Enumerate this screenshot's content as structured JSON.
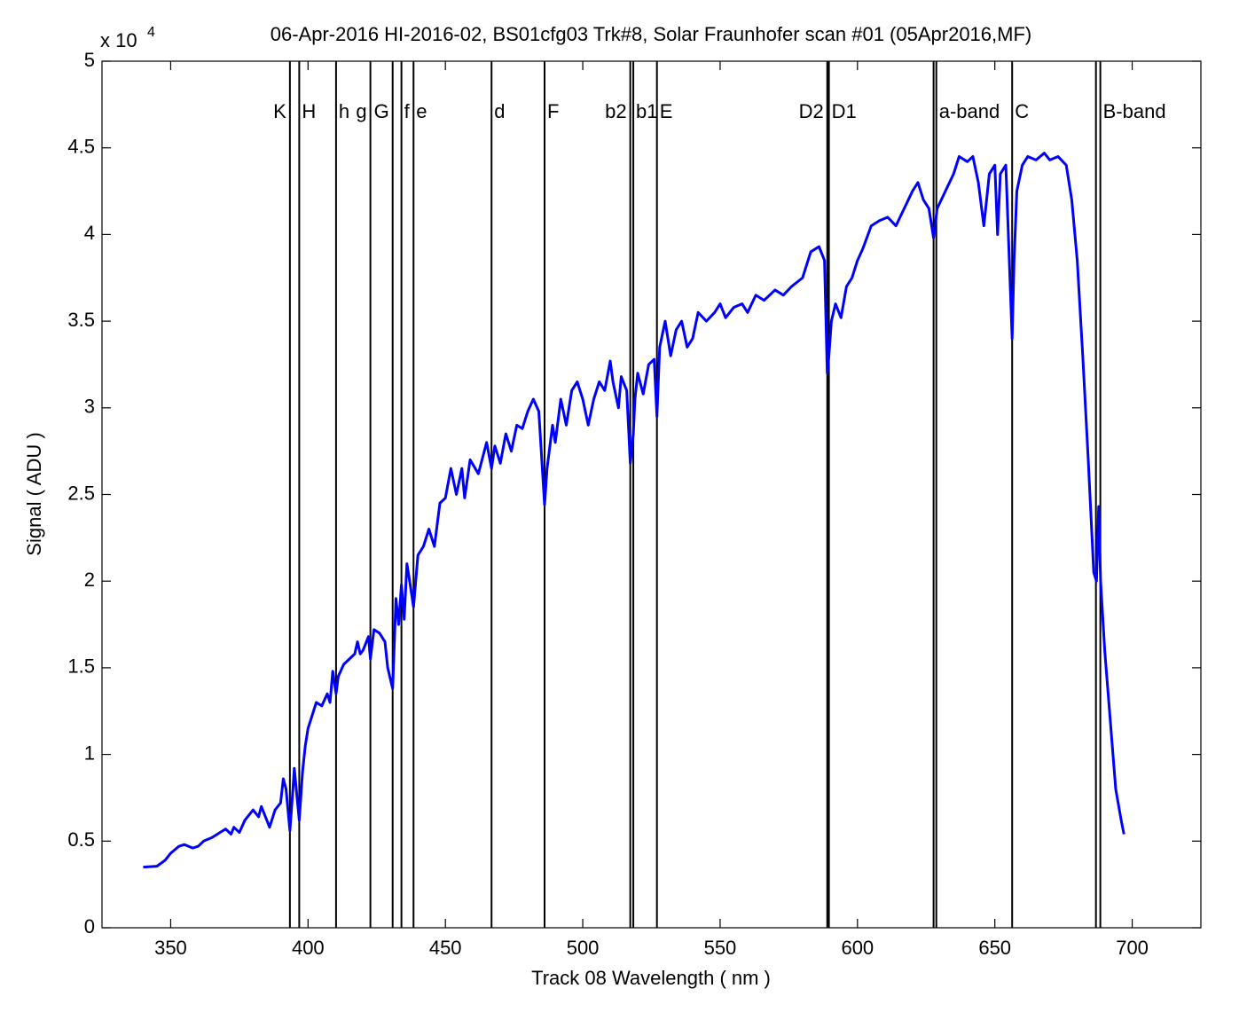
{
  "chart_data": {
    "type": "line",
    "title": "06-Apr-2016 HI-2016-02,  BS01cfg03 Trk#8,  Solar Fraunhofer scan #01  (05Apr2016,MF)",
    "x_label": "Track 08 Wavelength  ( nm )",
    "y_label": "Signal  ( ADU )",
    "y_multiplier": "x 10",
    "y_exponent": "4",
    "color": "#0000ff",
    "xlim": [
      325,
      725
    ],
    "xticks": [
      350,
      400,
      450,
      500,
      550,
      600,
      650,
      700
    ],
    "ylim": [
      0,
      50000
    ],
    "yticks": [
      {
        "value": 0,
        "label": "0"
      },
      {
        "value": 5000,
        "label": "0.5"
      },
      {
        "value": 10000,
        "label": "1"
      },
      {
        "value": 15000,
        "label": "1.5"
      },
      {
        "value": 20000,
        "label": "2"
      },
      {
        "value": 25000,
        "label": "2.5"
      },
      {
        "value": 30000,
        "label": "3"
      },
      {
        "value": 35000,
        "label": "3.5"
      },
      {
        "value": 40000,
        "label": "4"
      },
      {
        "value": 45000,
        "label": "4.5"
      },
      {
        "value": 50000,
        "label": "5"
      }
    ],
    "grid": false,
    "vlines": [
      393.4,
      396.8,
      410.2,
      422.7,
      430.8,
      434.0,
      438.4,
      466.8,
      486.1,
      517.3,
      518.4,
      527.0,
      589.0,
      589.6,
      627.7,
      628.7,
      656.3,
      686.8,
      688.4
    ],
    "vline_labels": [
      "K",
      "H",
      "h",
      "g",
      "G",
      "f",
      "e",
      "d",
      "F",
      "b2",
      "b1",
      "E",
      "D2",
      "D1",
      null,
      "a-band",
      "C",
      null,
      "B-band"
    ],
    "x": [
      340,
      345,
      348,
      350,
      353,
      355,
      358,
      360,
      362,
      365,
      368,
      370,
      372,
      373,
      375,
      377,
      380,
      382,
      383,
      385,
      386,
      388,
      390,
      391,
      392,
      393.4,
      394.5,
      395,
      396.8,
      398,
      399,
      400,
      402,
      403,
      405,
      407,
      408,
      409,
      410.2,
      411,
      413,
      415,
      417,
      418,
      419,
      420,
      422,
      422.7,
      424,
      426,
      428,
      429,
      430.8,
      432,
      433,
      434,
      435,
      436,
      437,
      438.4,
      440,
      442,
      444,
      446,
      448,
      450,
      452,
      454,
      456,
      457,
      459,
      462,
      465,
      466.8,
      468,
      470,
      472,
      474,
      476,
      478,
      480,
      482,
      484,
      486.1,
      487,
      489,
      490,
      492,
      494,
      496,
      498,
      500,
      502,
      504,
      506,
      508,
      510,
      511,
      513,
      514,
      516,
      517.3,
      518.4,
      519,
      520,
      522,
      524,
      526,
      527,
      528,
      530,
      532,
      534,
      536,
      538,
      540,
      542,
      545,
      548,
      550,
      552,
      555,
      558,
      560,
      563,
      566,
      570,
      573,
      576,
      580,
      583,
      586,
      588,
      589.0,
      589.6,
      590.5,
      592,
      594,
      596,
      598,
      600,
      602,
      605,
      608,
      611,
      614,
      617,
      620,
      622,
      624,
      626,
      627.7,
      629,
      632,
      635,
      637,
      640,
      642,
      644,
      646,
      648,
      650,
      651,
      652,
      654,
      656.3,
      657,
      658,
      660,
      662,
      665,
      668,
      670,
      673,
      676,
      678,
      680,
      682,
      684,
      686,
      687,
      687.8,
      688.5,
      690,
      692,
      694,
      696,
      697
    ],
    "values": [
      3500,
      3550,
      3900,
      4300,
      4700,
      4800,
      4600,
      4700,
      5000,
      5200,
      5500,
      5700,
      5400,
      5800,
      5500,
      6200,
      6800,
      6400,
      7000,
      6200,
      5800,
      6800,
      7200,
      8600,
      8000,
      5600,
      8000,
      9200,
      6200,
      9000,
      10500,
      11500,
      12500,
      13000,
      12800,
      13500,
      13000,
      14800,
      13500,
      14500,
      15200,
      15500,
      15800,
      16500,
      15800,
      16000,
      16800,
      15500,
      17200,
      17000,
      16500,
      15000,
      13800,
      19000,
      17500,
      19800,
      17800,
      21000,
      20000,
      18500,
      21500,
      22000,
      23000,
      22000,
      24500,
      24800,
      26500,
      25000,
      26500,
      24800,
      27000,
      26200,
      28000,
      26500,
      27800,
      26800,
      28500,
      27500,
      29000,
      28800,
      29800,
      30500,
      29800,
      24400,
      26500,
      29000,
      28000,
      30500,
      29000,
      31000,
      31500,
      30500,
      29000,
      30500,
      31500,
      31000,
      32700,
      31500,
      30000,
      31800,
      31000,
      26800,
      28500,
      30500,
      32000,
      30800,
      32500,
      32800,
      29500,
      33500,
      35000,
      33000,
      34500,
      35000,
      33500,
      34000,
      35500,
      35000,
      35500,
      36000,
      35200,
      35800,
      36000,
      35500,
      36500,
      36200,
      36800,
      36500,
      37000,
      37500,
      39000,
      39300,
      38500,
      32000,
      33000,
      35000,
      36000,
      35200,
      37000,
      37500,
      38500,
      39200,
      40500,
      40800,
      41000,
      40500,
      41500,
      42500,
      43000,
      42000,
      41500,
      39800,
      41500,
      42500,
      43500,
      44500,
      44200,
      44500,
      43000,
      40500,
      43500,
      44000,
      40000,
      43500,
      44000,
      34000,
      38500,
      42500,
      44000,
      44500,
      44300,
      44700,
      44300,
      44500,
      44000,
      42000,
      38500,
      33000,
      27000,
      20500,
      20000,
      24300,
      20000,
      16000,
      12000,
      8000,
      6200,
      5400
    ]
  }
}
